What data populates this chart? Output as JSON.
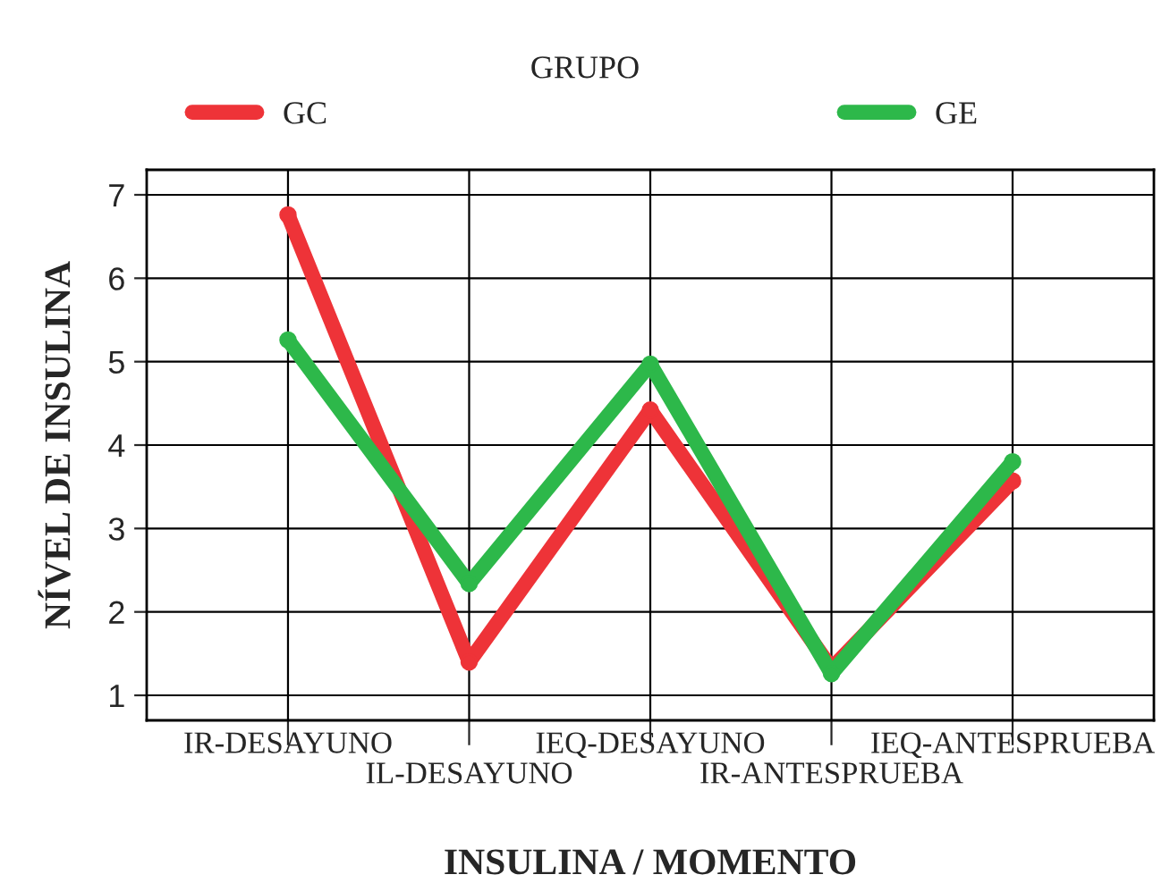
{
  "chart_data": {
    "type": "line",
    "xlabel": "INSULINA / MOMENTO",
    "ylabel": "NÍVEL DE INSULINA",
    "legend_title": "GRUPO",
    "legend": "top",
    "categories": [
      "IR-DESAYUNO",
      "IL-DESAYUNO",
      "IEQ-DESAYUNO",
      "IR-ANTESPRUEBA",
      "IEQ-ANTESPRUEBA"
    ],
    "series": [
      {
        "name": "GC",
        "color": "#ee3338",
        "values": [
          6.76,
          1.4,
          4.42,
          1.32,
          3.57
        ]
      },
      {
        "name": "GE",
        "color": "#2db84a",
        "values": [
          5.26,
          2.34,
          4.97,
          1.26,
          3.8
        ]
      }
    ],
    "ylim": [
      0.7,
      7.3
    ],
    "yticks": [
      1,
      2,
      3,
      4,
      5,
      6,
      7
    ],
    "grid": true,
    "marker": "circle",
    "line_style": "solid"
  }
}
